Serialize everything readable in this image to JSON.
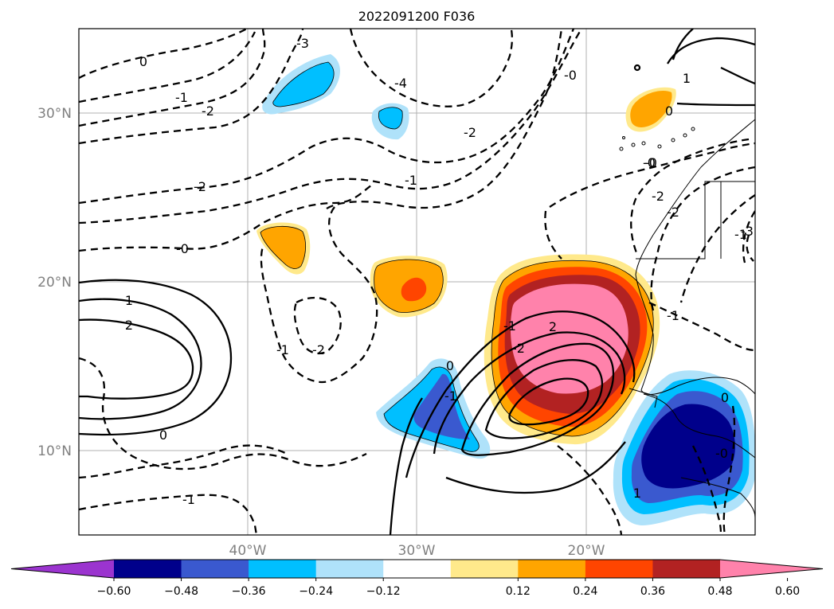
{
  "title": "2022091200 F036",
  "map": {
    "lat_labels": [
      "30°N",
      "20°N",
      "10°N"
    ],
    "lon_labels": [
      "40°W",
      "30°W",
      "20°W"
    ],
    "gridlines": true,
    "contour_labels": [
      "0",
      "-1",
      "-2",
      "-3",
      "-4",
      "-0",
      "-2",
      "-2",
      "-1",
      "-2",
      "-0",
      "-1",
      "-2",
      "-1",
      "-0",
      "1",
      "2",
      "0",
      "0",
      "-1",
      "-1",
      "-2",
      "0",
      "1",
      "-0",
      "-2",
      "2",
      "-1",
      "-3",
      "1",
      "-0",
      "0",
      "-1"
    ]
  },
  "colorbar": {
    "ticks": [
      "−0.60",
      "−0.48",
      "−0.36",
      "−0.24",
      "−0.12",
      "0.12",
      "0.24",
      "0.36",
      "0.48",
      "0.60"
    ],
    "colors": [
      "#9b34cf",
      "#00008b",
      "#3a59cf",
      "#00bfff",
      "#afe2fa",
      "#ffffff",
      "#ffe98b",
      "#ffa500",
      "#ff4500",
      "#b22222",
      "#ff82ab"
    ],
    "extend": "both"
  },
  "colors": {
    "pink": "#ff82ab",
    "darkred": "#b22222",
    "orangered": "#ff4500",
    "orange": "#ffa500",
    "yellow": "#ffe98b",
    "lightblue": "#afe2fa",
    "deepskyblue": "#00bfff",
    "royalblue": "#3a59cf",
    "navy": "#00008b"
  }
}
